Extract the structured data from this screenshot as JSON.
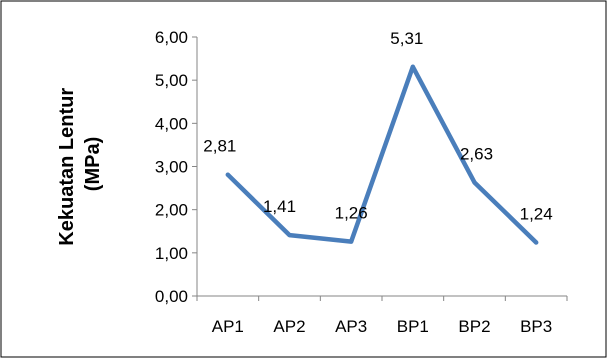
{
  "chart_data": {
    "type": "line",
    "categories": [
      "AP1",
      "AP2",
      "AP3",
      "BP1",
      "BP2",
      "BP3"
    ],
    "series": [
      {
        "values": [
          2.81,
          1.41,
          1.26,
          5.31,
          2.63,
          1.24
        ],
        "data_labels": [
          "2,81",
          "1,41",
          "1,26",
          "5,31",
          "2,63",
          "1,24"
        ],
        "color": "#4a7ebb"
      }
    ],
    "ylabel_line1": "Kekuatan Lentur",
    "ylabel_line2": "(MPa)",
    "ylim": [
      0,
      6
    ],
    "yticks": [
      0,
      1,
      2,
      3,
      4,
      5,
      6
    ],
    "ytick_labels": [
      "0,00",
      "1,00",
      "2,00",
      "3,00",
      "4,00",
      "5,00",
      "6,00"
    ],
    "grid": false,
    "legend": "none",
    "colors": {
      "axis": "#868686",
      "border": "#000000",
      "text": "#000000"
    }
  }
}
